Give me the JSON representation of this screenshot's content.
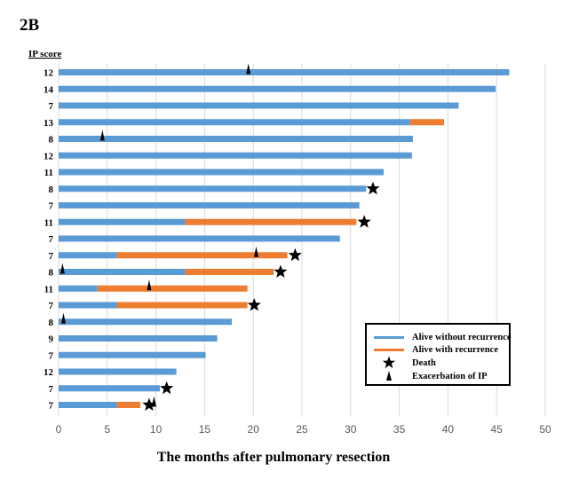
{
  "figure_label": "2B",
  "colors": {
    "alive_without_recurrence": "#5B9BD5",
    "alive_with_recurrence": "#ED7D31",
    "symbol": "#000000",
    "grid": "#d9d9d9",
    "axis_text": "#595959"
  },
  "chart_data": {
    "type": "bar",
    "orientation": "horizontal",
    "stacked": true,
    "ylabel": "IP score",
    "xlabel": "The months after pulmonary resection",
    "xlim": [
      0,
      50
    ],
    "xticks": [
      0,
      5,
      10,
      15,
      20,
      25,
      30,
      35,
      40,
      45,
      50
    ],
    "grid": "vertical",
    "legend_position": "bottom-right",
    "legend": [
      {
        "label": "Alive without recurrence",
        "kind": "line",
        "color_key": "alive_without_recurrence"
      },
      {
        "label": "Alive with recurrence",
        "kind": "line",
        "color_key": "alive_with_recurrence"
      },
      {
        "label": "Death",
        "kind": "star"
      },
      {
        "label": "Exacerbation of IP",
        "kind": "triangle"
      }
    ],
    "rows": [
      {
        "ip_score": "12",
        "without_recurrence": 46.3,
        "with_recurrence": 0,
        "death": null,
        "exacerbation": [
          19.5
        ]
      },
      {
        "ip_score": "14",
        "without_recurrence": 44.9,
        "with_recurrence": 0,
        "death": null,
        "exacerbation": []
      },
      {
        "ip_score": "7",
        "without_recurrence": 41.1,
        "with_recurrence": 0,
        "death": null,
        "exacerbation": []
      },
      {
        "ip_score": "13",
        "without_recurrence": 36.1,
        "with_recurrence": 3.5,
        "death": null,
        "exacerbation": []
      },
      {
        "ip_score": "8",
        "without_recurrence": 36.4,
        "with_recurrence": 0,
        "death": null,
        "exacerbation": [
          4.5
        ]
      },
      {
        "ip_score": "12",
        "without_recurrence": 36.3,
        "with_recurrence": 0,
        "death": null,
        "exacerbation": []
      },
      {
        "ip_score": "11",
        "without_recurrence": 33.4,
        "with_recurrence": 0,
        "death": null,
        "exacerbation": []
      },
      {
        "ip_score": "8",
        "without_recurrence": 31.6,
        "with_recurrence": 0,
        "death": 32.3,
        "exacerbation": []
      },
      {
        "ip_score": "7",
        "without_recurrence": 30.9,
        "with_recurrence": 0,
        "death": null,
        "exacerbation": []
      },
      {
        "ip_score": "11",
        "without_recurrence": 13.0,
        "with_recurrence": 17.6,
        "death": 31.4,
        "exacerbation": []
      },
      {
        "ip_score": "7",
        "without_recurrence": 28.9,
        "with_recurrence": 0,
        "death": null,
        "exacerbation": []
      },
      {
        "ip_score": "7",
        "without_recurrence": 6.0,
        "with_recurrence": 17.5,
        "death": 24.3,
        "exacerbation": [
          20.3
        ]
      },
      {
        "ip_score": "8",
        "without_recurrence": 13.0,
        "with_recurrence": 9.1,
        "death": 22.8,
        "exacerbation": [
          0.4
        ]
      },
      {
        "ip_score": "11",
        "without_recurrence": 4.0,
        "with_recurrence": 15.4,
        "death": null,
        "exacerbation": [
          9.3
        ]
      },
      {
        "ip_score": "7",
        "without_recurrence": 6.0,
        "with_recurrence": 13.4,
        "death": 20.1,
        "exacerbation": []
      },
      {
        "ip_score": "8",
        "without_recurrence": 17.8,
        "with_recurrence": 0,
        "death": null,
        "exacerbation": [
          0.5
        ]
      },
      {
        "ip_score": "9",
        "without_recurrence": 16.3,
        "with_recurrence": 0,
        "death": null,
        "exacerbation": []
      },
      {
        "ip_score": "7",
        "without_recurrence": 15.1,
        "with_recurrence": 0,
        "death": null,
        "exacerbation": []
      },
      {
        "ip_score": "12",
        "without_recurrence": 12.1,
        "with_recurrence": 0,
        "death": null,
        "exacerbation": []
      },
      {
        "ip_score": "7",
        "without_recurrence": 10.4,
        "with_recurrence": 0,
        "death": 11.1,
        "exacerbation": []
      },
      {
        "ip_score": "7",
        "without_recurrence": 6.0,
        "with_recurrence": 2.4,
        "death": 9.3,
        "exacerbation": [
          9.8
        ]
      }
    ]
  }
}
